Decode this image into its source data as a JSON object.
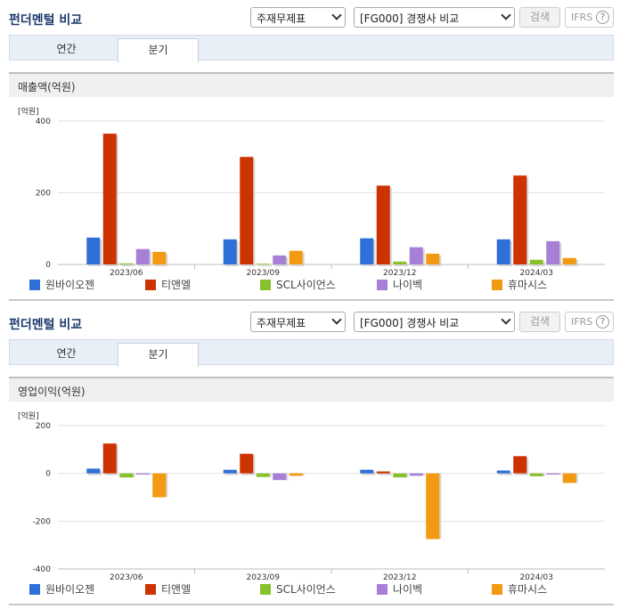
{
  "header": {
    "title": "펀더멘털 비교",
    "select1": "주재무제표",
    "select2": "[FG000] 경쟁사 비교",
    "search_label": "검색",
    "ifrs_label": "IFRS",
    "help_label": "?"
  },
  "tabs": [
    "연간",
    "분기"
  ],
  "active_tab": "분기",
  "colors": [
    "#2f6fd8",
    "#cc3300",
    "#88c12b",
    "#a87fd6",
    "#f29a12"
  ],
  "legend": [
    "원바이오젠",
    "티앤엘",
    "SCL사이언스",
    "나이벡",
    "휴마시스"
  ],
  "panels": [
    {
      "section_title": "매출액(억원)",
      "unit": "[억원]",
      "chart_data": {
        "type": "bar",
        "categories": [
          "2023/06",
          "2023/09",
          "2023/12",
          "2024/03"
        ],
        "series": [
          {
            "name": "원바이오젠",
            "values": [
              75,
              70,
              73,
              70
            ]
          },
          {
            "name": "티앤엘",
            "values": [
              365,
              300,
              220,
              248
            ]
          },
          {
            "name": "SCL사이언스",
            "values": [
              3,
              2,
              8,
              13
            ]
          },
          {
            "name": "나이벡",
            "values": [
              43,
              25,
              48,
              65
            ]
          },
          {
            "name": "휴마시스",
            "values": [
              35,
              38,
              30,
              18
            ]
          }
        ],
        "yticks": [
          0,
          200,
          400
        ],
        "ylim": [
          0,
          400
        ],
        "ylabel": "[억원]"
      }
    },
    {
      "section_title": "영업이익(억원)",
      "unit": "[억원]",
      "chart_data": {
        "type": "bar",
        "categories": [
          "2023/06",
          "2023/09",
          "2023/12",
          "2024/03"
        ],
        "series": [
          {
            "name": "원바이오젠",
            "values": [
              20,
              15,
              15,
              12
            ]
          },
          {
            "name": "티앤엘",
            "values": [
              125,
              82,
              8,
              72
            ]
          },
          {
            "name": "SCL사이언스",
            "values": [
              -17,
              -15,
              -17,
              -12
            ]
          },
          {
            "name": "나이벡",
            "values": [
              -5,
              -28,
              -10,
              -5
            ]
          },
          {
            "name": "휴마시스",
            "values": [
              -100,
              -10,
              -275,
              -40
            ]
          }
        ],
        "yticks": [
          -400,
          -200,
          0,
          200
        ],
        "ylim": [
          -400,
          200
        ],
        "ylabel": "[억원]"
      }
    }
  ]
}
